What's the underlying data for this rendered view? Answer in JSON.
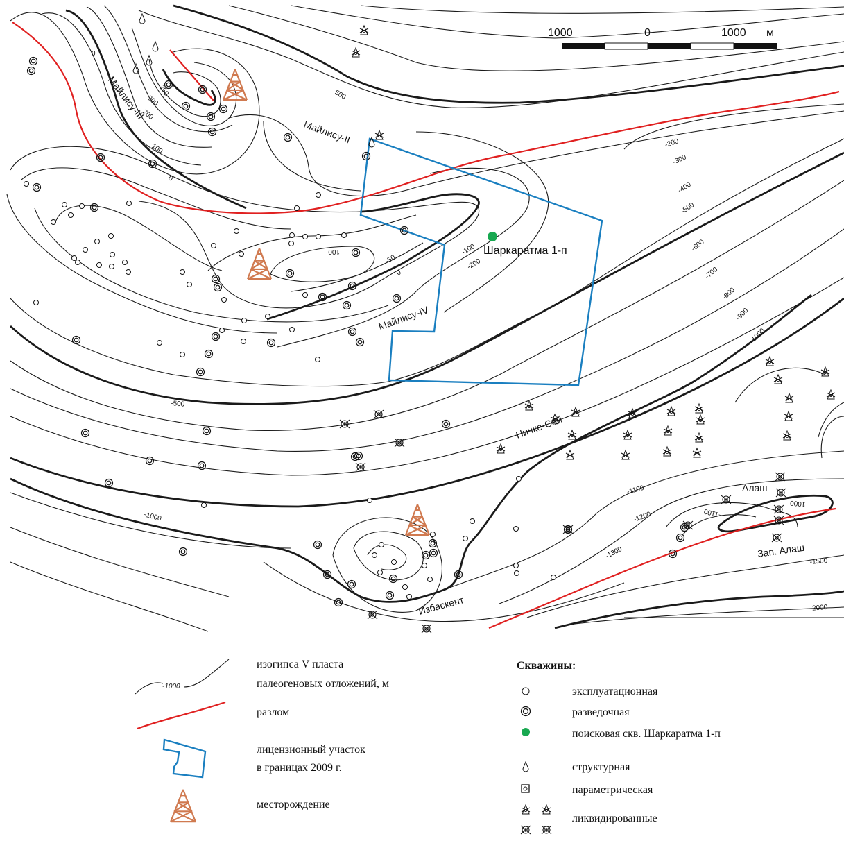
{
  "scale_bar": {
    "left": "1000",
    "mid": "0",
    "right": "1000",
    "unit": "м"
  },
  "contour_labels": [
    "0",
    "350",
    "300",
    "200",
    "100",
    "0",
    "500",
    "-200",
    "-300",
    "-400",
    "-500",
    "-600",
    "-700",
    "-800",
    "-900",
    "-1000",
    "100",
    "-50",
    "0",
    "-100",
    "-200",
    "-500",
    "-1000",
    "-1100",
    "-1200",
    "-1300",
    "-1000",
    "-1100",
    "-1500",
    "-2000"
  ],
  "field_labels": {
    "mailisu3": "Майлису-III",
    "mailisu2": "Майлису-II",
    "mailisu4": "Майлису-IV",
    "sharkaratma": "Шаркаратма 1-п",
    "nichke_sai": "Ничке-Сай",
    "alash": "Алаш",
    "zap_alash": "Зап. Алаш",
    "izbaskent": "Избаскент"
  },
  "legend": {
    "isohypse": "изогипса V пласта",
    "isohypse2": "палеогеновых отложений, м",
    "isohypse_sample": "-1000",
    "fault": "разлом",
    "license": "лицензионный участок",
    "license2": "в границах 2009 г.",
    "deposit": "месторождение",
    "wells_title": "Скважины:",
    "well_exploitation": "эксплуатационная",
    "well_exploration": "разведочная",
    "well_search": "поисковая скв. Шаркаратма 1-п",
    "well_structural": "структурная",
    "well_parametric": "параметрическая",
    "well_liquidated": "ликвидированные"
  },
  "colors": {
    "fault": "#e02020",
    "license": "#1a7fc0",
    "deposit": "#d07a50",
    "search_well": "#18a850"
  }
}
